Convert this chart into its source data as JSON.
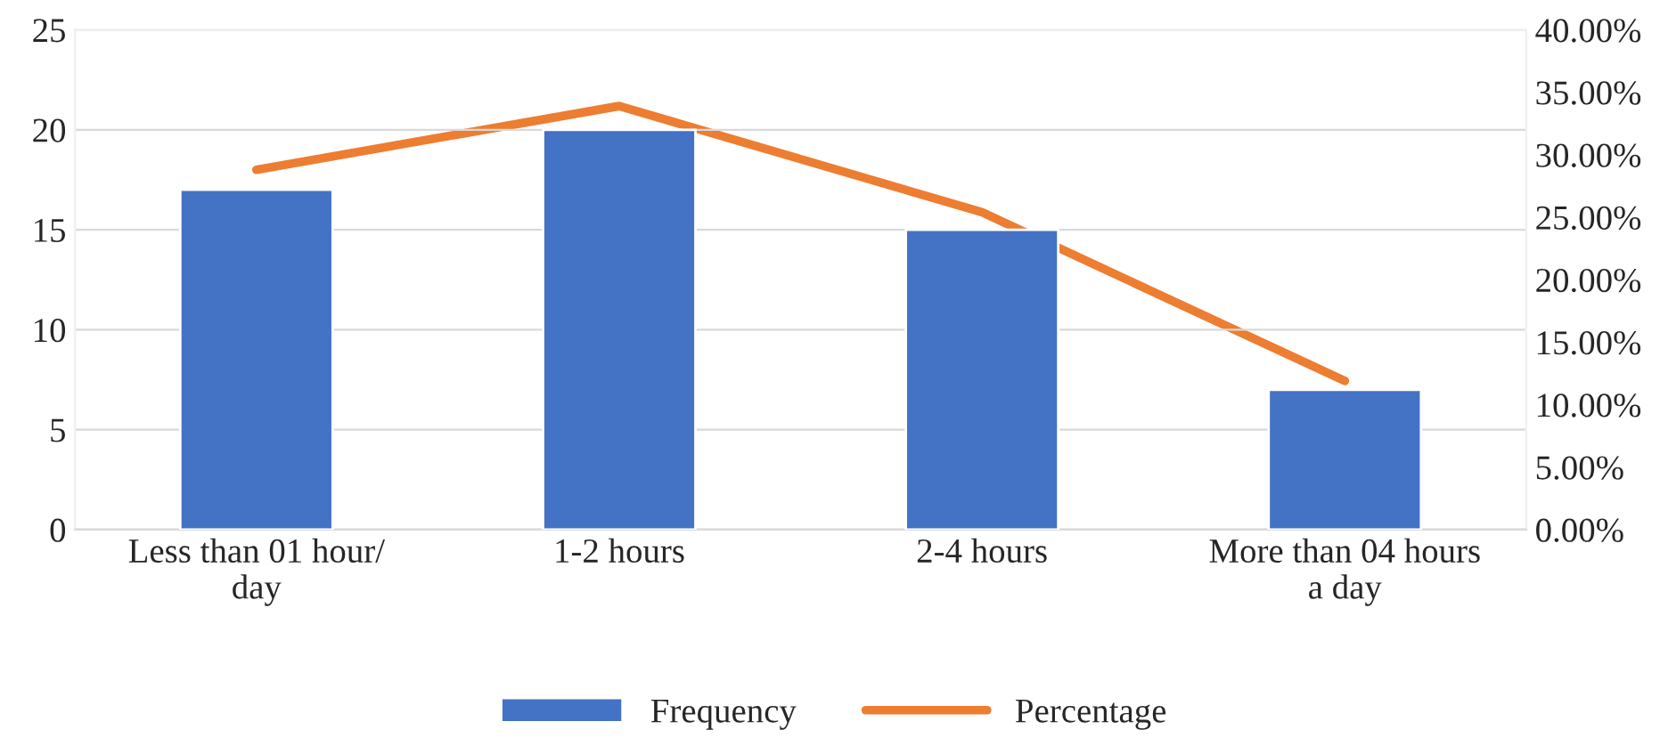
{
  "chart_data": {
    "type": "bar",
    "categories": [
      "Less than 01 hour/\nday",
      "1-2 hours",
      "2-4 hours",
      "More than 04 hours\na day"
    ],
    "series": [
      {
        "name": "Frequency",
        "color": "#4472c4",
        "values": [
          17,
          20,
          15,
          7
        ]
      },
      {
        "name": "Percentage",
        "type": "line",
        "axis": "y2",
        "color": "#ed7d31",
        "values": [
          28.8,
          33.9,
          25.4,
          11.9
        ]
      }
    ],
    "ylim": [
      0,
      25
    ],
    "yticks": [
      0,
      5,
      10,
      15,
      20,
      25
    ],
    "y2lim": [
      0,
      40
    ],
    "y2ticks": [
      {
        "value": 0,
        "label": "0.00%"
      },
      {
        "value": 5,
        "label": "5.00%"
      },
      {
        "value": 10,
        "label": "10.00%"
      },
      {
        "value": 15,
        "label": "15.00%"
      },
      {
        "value": 20,
        "label": "20.00%"
      },
      {
        "value": 25,
        "label": "25.00%"
      },
      {
        "value": 30,
        "label": "30.00%"
      },
      {
        "value": 35,
        "label": "35.00%"
      },
      {
        "value": 40,
        "label": "40.00%"
      }
    ],
    "grid": "y",
    "legend": "bottom",
    "marker": "none",
    "line_style": "solid"
  }
}
